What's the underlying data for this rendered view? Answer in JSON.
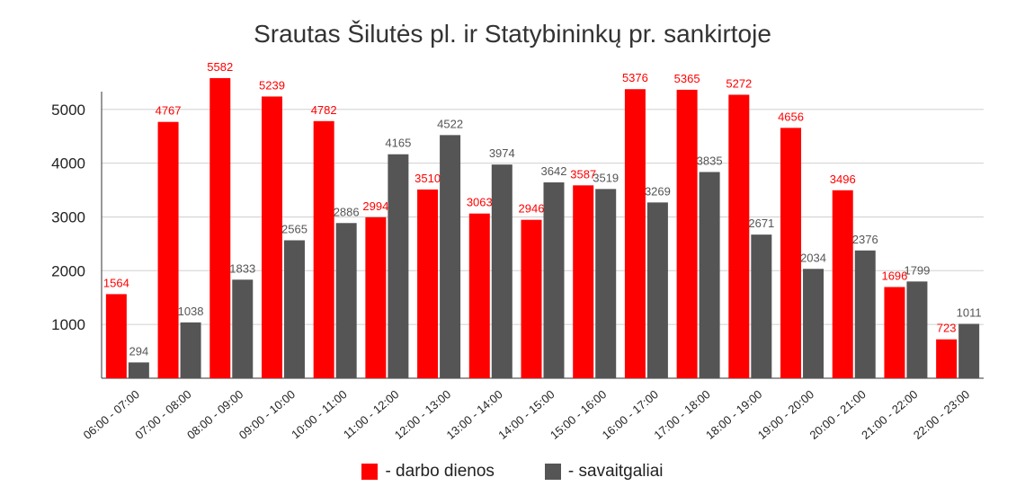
{
  "chart_data": {
    "type": "bar",
    "title": "Srautas Šilutės pl. ir Statybininkų pr. sankirtoje",
    "categories": [
      "06:00 - 07:00",
      "07:00 - 08:00",
      "08:00 - 09:00",
      "09:00 - 10:00",
      "10:00 - 11:00",
      "11:00 - 12:00",
      "12:00 - 13:00",
      "13:00 - 14:00",
      "14:00 - 15:00",
      "15:00 - 16:00",
      "16:00 - 17:00",
      "17:00 - 18:00",
      "18:00 - 19:00",
      "19:00 - 20:00",
      "20:00 - 21:00",
      "21:00 - 22:00",
      "22:00 - 23:00"
    ],
    "series": [
      {
        "name": "- darbo dienos",
        "color": "#ff0000",
        "label_color": "#ff0000",
        "values": [
          1564,
          4767,
          5582,
          5239,
          4782,
          2994,
          3510,
          3063,
          2946,
          3587,
          5376,
          5365,
          5272,
          4656,
          3496,
          1696,
          723
        ]
      },
      {
        "name": "- savaitgaliai",
        "color": "#555555",
        "label_color": "#555555",
        "values": [
          294,
          1038,
          1833,
          2565,
          2886,
          4165,
          4522,
          3974,
          3642,
          3519,
          3269,
          3835,
          2671,
          2034,
          2376,
          1799,
          1011
        ]
      }
    ],
    "yticks": [
      1000,
      2000,
      3000,
      4000,
      5000
    ],
    "ylim": [
      0,
      5330
    ],
    "grid": true,
    "legend_position": "bottom"
  }
}
